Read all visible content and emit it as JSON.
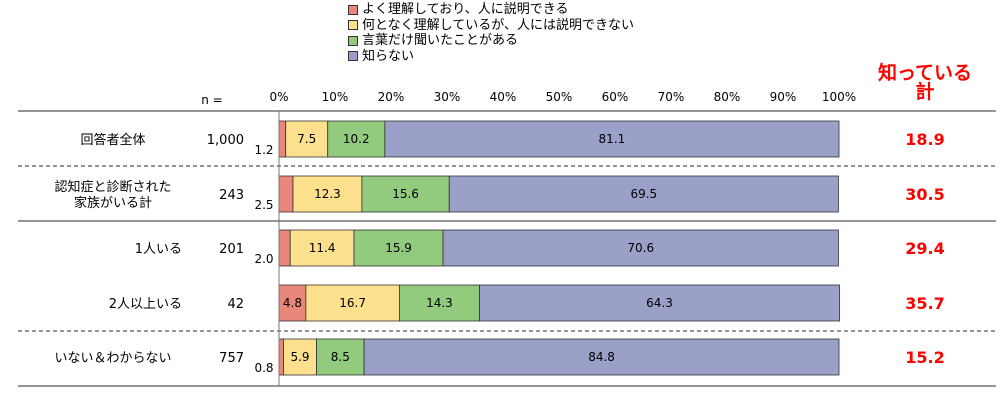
{
  "chart_data": {
    "type": "bar",
    "orientation": "horizontal",
    "stacked": true,
    "n_label": "n =",
    "xlim": [
      0,
      100
    ],
    "x_ticks": [
      "0%",
      "10%",
      "20%",
      "30%",
      "40%",
      "50%",
      "60%",
      "70%",
      "80%",
      "90%",
      "100%"
    ],
    "legend": [
      {
        "label": "よく理解しており、人に説明できる",
        "color": "#e8877a"
      },
      {
        "label": "何となく理解しているが、人には説明できない",
        "color": "#fce08e"
      },
      {
        "label": "言葉だけ聞いたことがある",
        "color": "#92cb7e"
      },
      {
        "label": "知らない",
        "color": "#9aa0c8"
      }
    ],
    "known_header": [
      "知っている",
      "計"
    ],
    "rows": [
      {
        "label": "回答者全体",
        "align": "center",
        "n": "1,000",
        "values": [
          1.2,
          7.5,
          10.2,
          81.1
        ],
        "labels": [
          "1.2",
          "7.5",
          "10.2",
          "81.1"
        ],
        "total": "18.9"
      },
      {
        "label": "認知症と診断された\n家族がいる計",
        "align": "center",
        "n": "243",
        "values": [
          2.5,
          12.3,
          15.6,
          69.5
        ],
        "labels": [
          "2.5",
          "12.3",
          "15.6",
          "69.5"
        ],
        "total": "30.5"
      },
      {
        "label": "1人いる",
        "align": "right",
        "n": "201",
        "values": [
          2.0,
          11.4,
          15.9,
          70.6
        ],
        "labels": [
          "2.0",
          "11.4",
          "15.9",
          "70.6"
        ],
        "total": "29.4"
      },
      {
        "label": "2人以上いる",
        "align": "right",
        "n": "42",
        "values": [
          4.8,
          16.7,
          14.3,
          64.3
        ],
        "labels": [
          "4.8",
          "16.7",
          "14.3",
          "64.3"
        ],
        "total": "35.7"
      },
      {
        "label": "いない＆わからない",
        "align": "center",
        "n": "757",
        "values": [
          0.8,
          5.9,
          8.5,
          84.8
        ],
        "labels": [
          "0.8",
          "5.9",
          "8.5",
          "84.8"
        ],
        "total": "15.2"
      }
    ]
  }
}
